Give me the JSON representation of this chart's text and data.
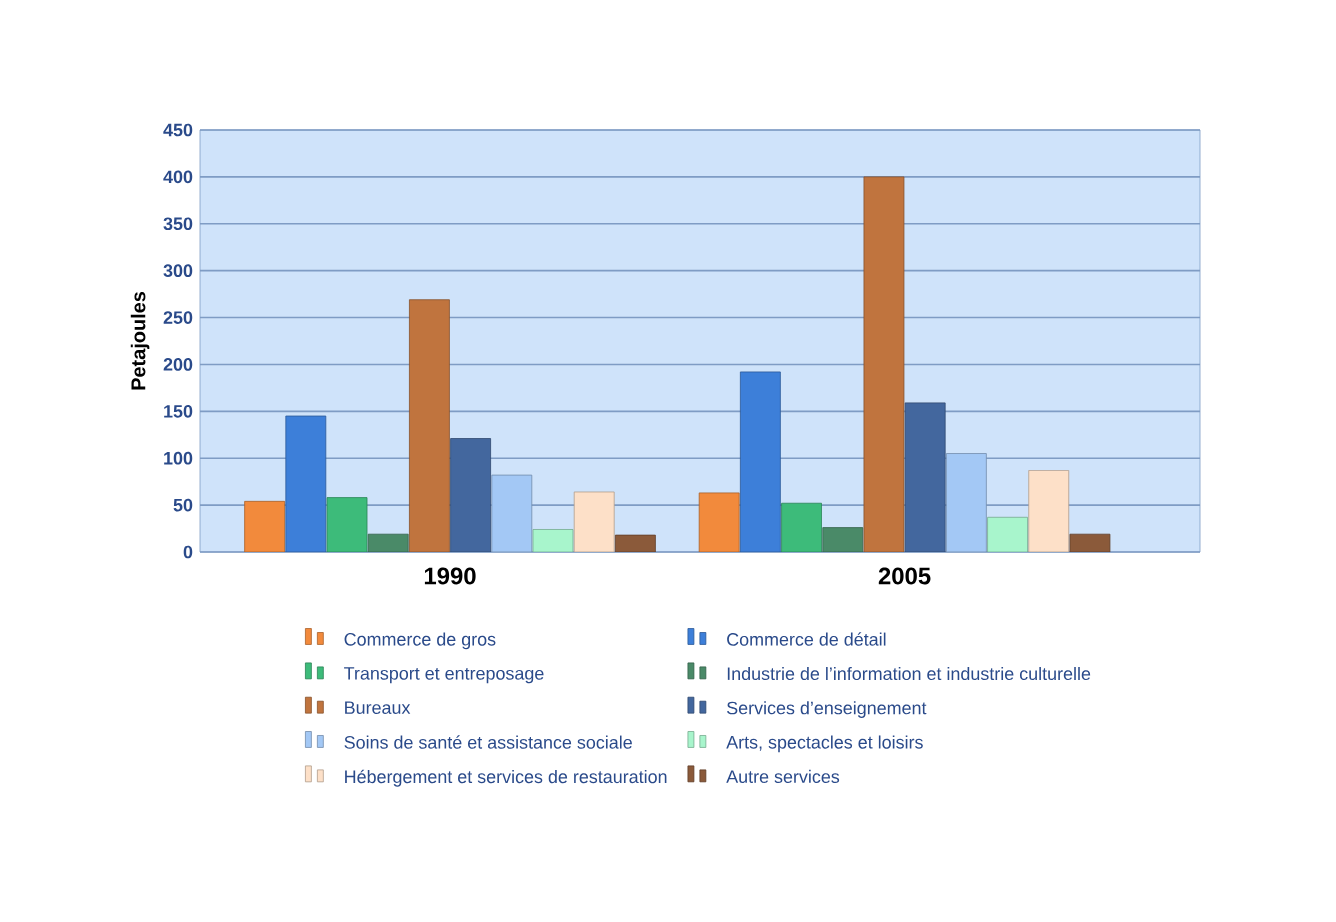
{
  "chart_data": {
    "type": "bar",
    "ylabel": "Petajoules",
    "categories": [
      "1990",
      "2005"
    ],
    "ylim": [
      0,
      450
    ],
    "yticks": [
      0,
      50,
      100,
      150,
      200,
      250,
      300,
      350,
      400,
      450
    ],
    "grid": "y",
    "legend": "bottom",
    "series": [
      {
        "name": "Commerce de gros",
        "color": "#f28a3c",
        "values": [
          54,
          63
        ]
      },
      {
        "name": "Commerce de détail",
        "color": "#3d7fd9",
        "values": [
          145,
          192
        ]
      },
      {
        "name": "Transport et entreposage",
        "color": "#3dbb7a",
        "values": [
          58,
          52
        ]
      },
      {
        "name": "Industrie de l’information et industrie culturelle",
        "color": "#4a8a68",
        "values": [
          19,
          26
        ]
      },
      {
        "name": "Bureaux",
        "color": "#c0743e",
        "values": [
          269,
          400
        ]
      },
      {
        "name": "Services d’enseignement",
        "color": "#43679e",
        "values": [
          121,
          159
        ]
      },
      {
        "name": "Soins de santé et assistance sociale",
        "color": "#a3c8f5",
        "values": [
          82,
          105
        ]
      },
      {
        "name": "Arts, spectacles et loisirs",
        "color": "#a8f5cc",
        "values": [
          24,
          37
        ]
      },
      {
        "name": "Hébergement et services de restauration",
        "color": "#fde0c8",
        "values": [
          64,
          87
        ]
      },
      {
        "name": "Autre services",
        "color": "#8b5a3a",
        "values": [
          18,
          19
        ]
      }
    ]
  }
}
